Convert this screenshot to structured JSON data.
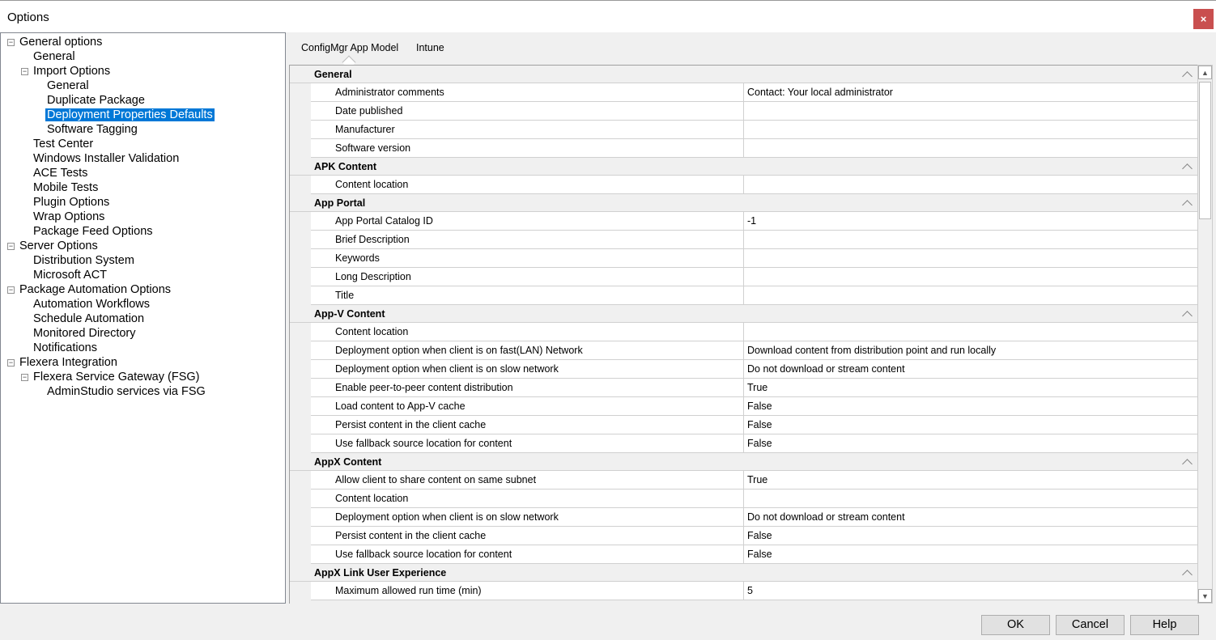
{
  "window": {
    "title": "Options",
    "close_label": "×"
  },
  "tree": [
    {
      "label": "General options",
      "level": 0,
      "expander": "minus"
    },
    {
      "label": "General",
      "level": 1
    },
    {
      "label": "Import Options",
      "level": 1,
      "expander": "minus"
    },
    {
      "label": "General",
      "level": 2
    },
    {
      "label": "Duplicate Package",
      "level": 2
    },
    {
      "label": "Deployment Properties Defaults",
      "level": 2,
      "selected": true
    },
    {
      "label": "Software Tagging",
      "level": 2
    },
    {
      "label": "Test Center",
      "level": 1
    },
    {
      "label": "Windows Installer Validation",
      "level": 1
    },
    {
      "label": "ACE Tests",
      "level": 1
    },
    {
      "label": "Mobile Tests",
      "level": 1
    },
    {
      "label": "Plugin Options",
      "level": 1
    },
    {
      "label": "Wrap Options",
      "level": 1
    },
    {
      "label": "Package Feed Options",
      "level": 1
    },
    {
      "label": "Server Options",
      "level": 0,
      "expander": "minus"
    },
    {
      "label": "Distribution System",
      "level": 1
    },
    {
      "label": "Microsoft ACT",
      "level": 1
    },
    {
      "label": "Package Automation Options",
      "level": 0,
      "expander": "minus"
    },
    {
      "label": "Automation Workflows",
      "level": 1
    },
    {
      "label": "Schedule Automation",
      "level": 1
    },
    {
      "label": "Monitored Directory",
      "level": 1
    },
    {
      "label": "Notifications",
      "level": 1
    },
    {
      "label": "Flexera Integration",
      "level": 0,
      "expander": "minus"
    },
    {
      "label": "Flexera Service Gateway (FSG)",
      "level": 1,
      "expander": "minus"
    },
    {
      "label": "AdminStudio services via FSG",
      "level": 2
    }
  ],
  "tabs": [
    {
      "label": "ConfigMgr App Model",
      "active": true
    },
    {
      "label": "Intune"
    }
  ],
  "grid": [
    {
      "category": "General",
      "rows": [
        [
          "Administrator comments",
          "Contact:  Your local administrator"
        ],
        [
          "Date published",
          ""
        ],
        [
          "Manufacturer",
          ""
        ],
        [
          "Software version",
          ""
        ]
      ]
    },
    {
      "category": "APK Content",
      "rows": [
        [
          "Content location",
          ""
        ]
      ]
    },
    {
      "category": "App Portal",
      "rows": [
        [
          "App Portal Catalog ID",
          "-1"
        ],
        [
          "Brief Description",
          ""
        ],
        [
          "Keywords",
          ""
        ],
        [
          "Long Description",
          ""
        ],
        [
          "Title",
          ""
        ]
      ]
    },
    {
      "category": "App-V Content",
      "rows": [
        [
          "Content location",
          ""
        ],
        [
          "Deployment option when client is on fast(LAN) Network",
          "Download content from distribution point and run locally"
        ],
        [
          "Deployment option when client is on slow network",
          "Do not download or stream content"
        ],
        [
          "Enable peer-to-peer content distribution",
          "True"
        ],
        [
          "Load content to App-V cache",
          "False"
        ],
        [
          "Persist content in the client cache",
          "False"
        ],
        [
          "Use fallback source location for content",
          "False"
        ]
      ]
    },
    {
      "category": "AppX Content",
      "rows": [
        [
          "Allow client to share content on same subnet",
          "True"
        ],
        [
          "Content location",
          ""
        ],
        [
          "Deployment option when client is on slow network",
          "Do not download or stream content"
        ],
        [
          "Persist content in the client cache",
          "False"
        ],
        [
          "Use fallback source location for content",
          "False"
        ]
      ]
    },
    {
      "category": "AppX Link User Experience",
      "rows": [
        [
          "Maximum allowed run time (min)",
          "5"
        ]
      ]
    }
  ],
  "buttons": {
    "ok": "OK",
    "cancel": "Cancel",
    "help": "Help"
  }
}
